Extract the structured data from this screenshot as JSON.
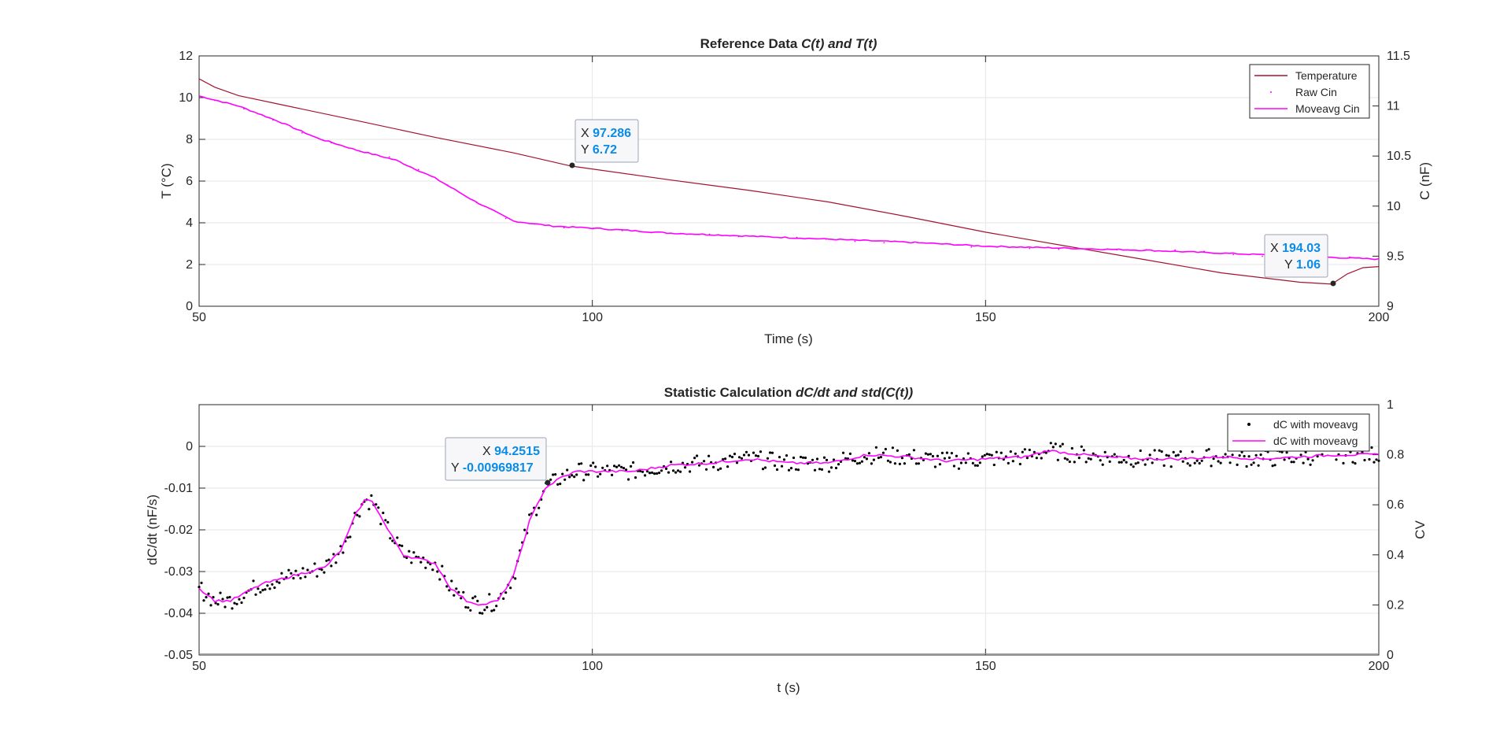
{
  "colors": {
    "temperature": "#a2142f",
    "raw_cin": "#ff00ff",
    "moveavg": "#ff00ff",
    "dc_points": "#000000",
    "grid": "#e6e6e6",
    "axis": "#262626",
    "tip_value": "#0a8ce6"
  },
  "chart_data": [
    {
      "type": "line",
      "title_plain": "Reference Data ",
      "title_italic": "C(t) and T(t)",
      "xlabel": "Time (s)",
      "ylabel_left": "T (°C)",
      "ylabel_right": "C (nF)",
      "xlim": [
        50,
        200
      ],
      "ylim_left": [
        0,
        12
      ],
      "ylim_right": [
        9,
        11.5
      ],
      "xticks": [
        "50",
        "100",
        "150",
        "200"
      ],
      "yticks_left": [
        "0",
        "2",
        "4",
        "6",
        "8",
        "10",
        "12"
      ],
      "yticks_right": [
        "9",
        "9.5",
        "10",
        "10.5",
        "11",
        "11.5"
      ],
      "grid": true,
      "legend_position": "top-right",
      "legend": [
        "Temperature",
        "Raw Cin",
        "Moveavg Cin"
      ],
      "series": [
        {
          "name": "Temperature",
          "axis": "left",
          "x": [
            50,
            52,
            55,
            60,
            70,
            80,
            90,
            97.286,
            110,
            120,
            130,
            140,
            150,
            160,
            170,
            180,
            190,
            194.03,
            196,
            198,
            200
          ],
          "y": [
            10.9,
            10.5,
            10.1,
            9.7,
            8.9,
            8.1,
            7.35,
            6.72,
            6.05,
            5.55,
            5.0,
            4.3,
            3.55,
            2.9,
            2.25,
            1.6,
            1.15,
            1.06,
            1.55,
            1.85,
            1.9
          ]
        },
        {
          "name": "Moveavg Cin",
          "axis": "right",
          "x": [
            50,
            55,
            60,
            65,
            70,
            75,
            80,
            85,
            90,
            95,
            100,
            110,
            120,
            130,
            140,
            150,
            160,
            170,
            180,
            190,
            200
          ],
          "y": [
            11.1,
            11.0,
            10.85,
            10.68,
            10.56,
            10.46,
            10.28,
            10.05,
            9.85,
            9.8,
            9.78,
            9.73,
            9.7,
            9.67,
            9.64,
            9.6,
            9.58,
            9.56,
            9.53,
            9.5,
            9.47
          ]
        }
      ],
      "datatips": [
        {
          "x_label": "X",
          "x_value": "97.286",
          "y_label": "Y",
          "y_value": "6.72",
          "point_x": 97.286,
          "point_y": 6.72
        },
        {
          "x_label": "X",
          "x_value": "194.03",
          "y_label": "Y",
          "y_value": "1.06",
          "point_x": 194.03,
          "point_y": 1.06
        }
      ]
    },
    {
      "type": "scatter",
      "title_plain": "Statistic Calculation ",
      "title_italic": "dC/dt and std(C(t))",
      "xlabel": "t (s)",
      "ylabel_left": "dC/dt (nF/s)",
      "ylabel_right": "CV",
      "xlim": [
        50,
        200
      ],
      "ylim_left": [
        -0.05,
        0.01
      ],
      "ylim_right": [
        0,
        1
      ],
      "xticks": [
        "50",
        "100",
        "150",
        "200"
      ],
      "yticks_left": [
        "-0.05",
        "-0.04",
        "-0.03",
        "-0.02",
        "-0.01",
        "0"
      ],
      "yticks_right": [
        "0",
        "0.2",
        "0.4",
        "0.6",
        "0.8",
        "1"
      ],
      "grid": true,
      "legend_position": "top-right",
      "legend": [
        "dC with moveavg",
        "dC with moveavg"
      ],
      "series": [
        {
          "name": "dC with moveavg",
          "axis": "left",
          "x": [
            50,
            52,
            54,
            56,
            58,
            60,
            62,
            64,
            66,
            68,
            70,
            71,
            72,
            74,
            76,
            78,
            80,
            82,
            84,
            86,
            88,
            90,
            92,
            94,
            96,
            98,
            100,
            105,
            110,
            115,
            120,
            125,
            130,
            135,
            140,
            145,
            150,
            155,
            158,
            160,
            165,
            170,
            175,
            180,
            185,
            190,
            195,
            200
          ],
          "y": [
            -0.034,
            -0.037,
            -0.037,
            -0.035,
            -0.033,
            -0.032,
            -0.031,
            -0.03,
            -0.029,
            -0.025,
            -0.016,
            -0.013,
            -0.013,
            -0.02,
            -0.026,
            -0.027,
            -0.028,
            -0.034,
            -0.037,
            -0.038,
            -0.037,
            -0.031,
            -0.018,
            -0.01,
            -0.0075,
            -0.006,
            -0.006,
            -0.006,
            -0.0045,
            -0.004,
            -0.003,
            -0.004,
            -0.004,
            -0.002,
            -0.0025,
            -0.0035,
            -0.003,
            -0.0025,
            -0.001,
            -0.0015,
            -0.0025,
            -0.003,
            -0.003,
            -0.0025,
            -0.003,
            -0.0025,
            -0.002,
            -0.002
          ]
        }
      ],
      "datatips": [
        {
          "x_label": "X",
          "x_value": "94.2515",
          "y_label": "Y",
          "y_value": "-0.00969817",
          "point_x": 94.2515,
          "point_y": -0.00969817
        }
      ]
    }
  ]
}
